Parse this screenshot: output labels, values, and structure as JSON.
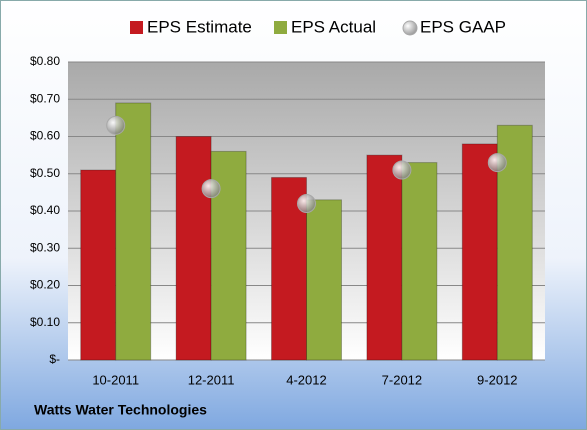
{
  "chart_data": {
    "type": "bar",
    "categories": [
      "10-2011",
      "12-2011",
      "4-2012",
      "7-2012",
      "9-2012"
    ],
    "series": [
      {
        "name": "EPS Estimate",
        "color": "#c41a20",
        "values": [
          0.51,
          0.6,
          0.49,
          0.55,
          0.58
        ]
      },
      {
        "name": "EPS Actual",
        "color": "#8fab3f",
        "values": [
          0.69,
          0.56,
          0.43,
          0.53,
          0.63
        ]
      },
      {
        "name": "EPS GAAP",
        "color": "#a8a8a8",
        "type": "scatter",
        "values": [
          0.63,
          0.46,
          0.42,
          0.51,
          0.53
        ]
      }
    ],
    "ylim": [
      0,
      0.8
    ],
    "yticks": [
      {
        "value": 0,
        "label": "$-"
      },
      {
        "value": 0.1,
        "label": "$0.10"
      },
      {
        "value": 0.2,
        "label": "$0.20"
      },
      {
        "value": 0.3,
        "label": "$0.30"
      },
      {
        "value": 0.4,
        "label": "$0.40"
      },
      {
        "value": 0.5,
        "label": "$0.50"
      },
      {
        "value": 0.6,
        "label": "$0.60"
      },
      {
        "value": 0.7,
        "label": "$0.70"
      },
      {
        "value": 0.8,
        "label": "$0.80"
      }
    ],
    "grid": true,
    "legend": "top",
    "footer": "Watts Water Technologies"
  }
}
